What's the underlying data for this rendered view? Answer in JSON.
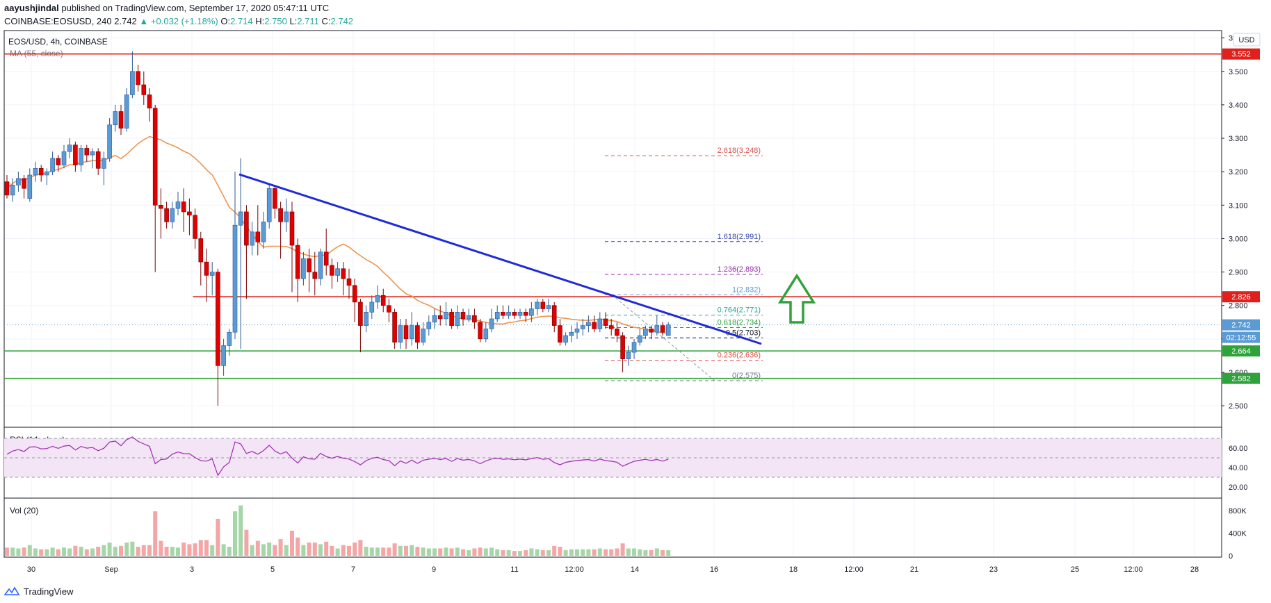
{
  "header": {
    "author": "aayushjindal",
    "published": "published on TradingView.com, September 17, 2020 05:47:11 UTC",
    "symbol": "COINBASE:EOSUSD, 240",
    "last": "2.742",
    "change": "▲ +0.032 (+1.18%)",
    "o_label": "O:",
    "o": "2.714",
    "h_label": "H:",
    "h": "2.750",
    "l_label": "L:",
    "l": "2.711",
    "c_label": "C:",
    "c": "2.742"
  },
  "panes": {
    "main_label": "EOS/USD, 4h, COINBASE",
    "ma_label": "MA (55, close)",
    "rsi_label": "RSI (14, close)",
    "vol_label": "Vol (20)",
    "currency": "USD"
  },
  "colors": {
    "up": "#5b9bd5",
    "down": "#e00000",
    "ma": "#f0944d",
    "trendline": "#1f2ad8",
    "resistance": "#e0201c",
    "support": "#2ea33b",
    "rsi": "#9c27b0",
    "fib": "#d9534f",
    "arrow": "#2ea33b"
  },
  "chart_data": {
    "type": "candlestick",
    "ylim": [
      2.44,
      3.62
    ],
    "y_ticks": [
      "2.500",
      "2.600",
      "2.700",
      "2.800",
      "2.900",
      "3.000",
      "3.100",
      "3.200",
      "3.300",
      "3.400",
      "3.500",
      "3.600"
    ],
    "x_ticks": [
      "30",
      "Sep",
      "3",
      "5",
      "7",
      "9",
      "11",
      "12:00",
      "14",
      "16",
      "18",
      "12:00",
      "21",
      "23",
      "25",
      "12:00",
      "28"
    ],
    "price_tags": [
      {
        "label": "3.552",
        "value": 3.552,
        "color": "#e0201c"
      },
      {
        "label": "2.826",
        "value": 2.826,
        "color": "#e0201c"
      },
      {
        "label": "2.742",
        "value": 2.742,
        "color": "#5b9bd5"
      },
      {
        "label": "02:12:55",
        "value": 2.7,
        "color": "#5b9bd5"
      },
      {
        "label": "2.664",
        "value": 2.664,
        "color": "#2ea33b"
      },
      {
        "label": "2.582",
        "value": 2.582,
        "color": "#2ea33b"
      }
    ],
    "horizontal_lines": [
      {
        "name": "resistance-top",
        "value": 3.552,
        "color": "#e0201c",
        "from": 0.0
      },
      {
        "name": "resistance-mid",
        "value": 2.826,
        "color": "#e0201c",
        "from": 0.155
      },
      {
        "name": "support-upper",
        "value": 2.664,
        "color": "#2ea33b",
        "from": 0.0
      },
      {
        "name": "support-lower",
        "value": 2.582,
        "color": "#2ea33b",
        "from": 0.0
      }
    ],
    "fib_levels": [
      {
        "label": "2.618(3.248)",
        "value": 3.248,
        "color": "#d9534f"
      },
      {
        "label": "1.618(2.991)",
        "value": 2.991,
        "color": "#3949ab"
      },
      {
        "label": "1.236(2.893)",
        "value": 2.893,
        "color": "#9c27b0"
      },
      {
        "label": "1(2.832)",
        "value": 2.832,
        "color": "#5b9bd5"
      },
      {
        "label": "0.764(2.771)",
        "value": 2.771,
        "color": "#26a69a"
      },
      {
        "label": "0.618(2.734)",
        "value": 2.734,
        "color": "#2ea33b"
      },
      {
        "label": "0.5(2.703)",
        "value": 2.703,
        "color": "#131722"
      },
      {
        "label": "0.236(2.636)",
        "value": 2.636,
        "color": "#d9534f"
      },
      {
        "label": "0(2.575)",
        "value": 2.575,
        "color": "#787b86"
      }
    ],
    "candles": [
      [
        3.17,
        3.13,
        3.19,
        3.12
      ],
      [
        3.13,
        3.16,
        3.18,
        3.11
      ],
      [
        3.16,
        3.18,
        3.2,
        3.14
      ],
      [
        3.18,
        3.15,
        3.19,
        3.12
      ],
      [
        3.12,
        3.19,
        3.21,
        3.11
      ],
      [
        3.19,
        3.21,
        3.23,
        3.17
      ],
      [
        3.21,
        3.19,
        3.22,
        3.17
      ],
      [
        3.19,
        3.2,
        3.21,
        3.16
      ],
      [
        3.2,
        3.24,
        3.26,
        3.19
      ],
      [
        3.24,
        3.22,
        3.25,
        3.2
      ],
      [
        3.22,
        3.26,
        3.28,
        3.21
      ],
      [
        3.26,
        3.28,
        3.3,
        3.24
      ],
      [
        3.28,
        3.22,
        3.29,
        3.2
      ],
      [
        3.22,
        3.27,
        3.28,
        3.2
      ],
      [
        3.27,
        3.25,
        3.28,
        3.23
      ],
      [
        3.25,
        3.26,
        3.27,
        3.21
      ],
      [
        3.26,
        3.21,
        3.27,
        3.19
      ],
      [
        3.21,
        3.24,
        3.26,
        3.16
      ],
      [
        3.24,
        3.34,
        3.36,
        3.23
      ],
      [
        3.34,
        3.38,
        3.4,
        3.32
      ],
      [
        3.38,
        3.33,
        3.4,
        3.31
      ],
      [
        3.33,
        3.43,
        3.45,
        3.32
      ],
      [
        3.43,
        3.5,
        3.56,
        3.42
      ],
      [
        3.5,
        3.46,
        3.52,
        3.44
      ],
      [
        3.46,
        3.43,
        3.5,
        3.4
      ],
      [
        3.43,
        3.39,
        3.45,
        3.35
      ],
      [
        3.39,
        3.1,
        3.4,
        2.9
      ],
      [
        3.1,
        3.09,
        3.15,
        3.0
      ],
      [
        3.09,
        3.05,
        3.11,
        3.03
      ],
      [
        3.05,
        3.09,
        3.11,
        3.03
      ],
      [
        3.09,
        3.11,
        3.14,
        3.07
      ],
      [
        3.11,
        3.08,
        3.15,
        3.02
      ],
      [
        3.08,
        3.07,
        3.12,
        3.01
      ],
      [
        3.07,
        3.0,
        3.09,
        2.97
      ],
      [
        3.0,
        2.93,
        3.02,
        2.86
      ],
      [
        2.93,
        2.89,
        2.97,
        2.81
      ],
      [
        2.89,
        2.9,
        2.93,
        2.83
      ],
      [
        2.9,
        2.62,
        2.91,
        2.5
      ],
      [
        2.62,
        2.68,
        2.7,
        2.59
      ],
      [
        2.68,
        2.72,
        2.73,
        2.65
      ],
      [
        2.72,
        3.04,
        3.2,
        2.7
      ],
      [
        3.04,
        3.08,
        3.24,
        2.67
      ],
      [
        3.08,
        2.98,
        3.1,
        2.82
      ],
      [
        2.98,
        3.02,
        3.05,
        2.95
      ],
      [
        3.02,
        2.99,
        3.1,
        2.95
      ],
      [
        2.99,
        3.05,
        3.08,
        2.97
      ],
      [
        3.05,
        3.15,
        3.16,
        3.03
      ],
      [
        3.15,
        3.09,
        3.16,
        3.06
      ],
      [
        3.09,
        3.05,
        3.11,
        2.94
      ],
      [
        3.05,
        3.08,
        3.12,
        3.02
      ],
      [
        3.08,
        2.98,
        3.11,
        2.84
      ],
      [
        2.98,
        2.88,
        3.0,
        2.81
      ],
      [
        2.88,
        2.94,
        2.96,
        2.86
      ],
      [
        2.94,
        2.9,
        2.97,
        2.84
      ],
      [
        2.9,
        2.88,
        2.96,
        2.83
      ],
      [
        2.88,
        2.96,
        2.97,
        2.86
      ],
      [
        2.96,
        2.92,
        3.03,
        2.89
      ],
      [
        2.92,
        2.89,
        2.94,
        2.85
      ],
      [
        2.89,
        2.91,
        2.93,
        2.87
      ],
      [
        2.91,
        2.88,
        2.93,
        2.83
      ],
      [
        2.88,
        2.86,
        2.91,
        2.82
      ],
      [
        2.86,
        2.81,
        2.88,
        2.75
      ],
      [
        2.81,
        2.74,
        2.82,
        2.66
      ],
      [
        2.74,
        2.78,
        2.8,
        2.72
      ],
      [
        2.78,
        2.81,
        2.83,
        2.76
      ],
      [
        2.81,
        2.83,
        2.86,
        2.79
      ],
      [
        2.83,
        2.8,
        2.85,
        2.78
      ],
      [
        2.8,
        2.78,
        2.82,
        2.75
      ],
      [
        2.78,
        2.69,
        2.79,
        2.67
      ],
      [
        2.69,
        2.74,
        2.76,
        2.67
      ],
      [
        2.74,
        2.7,
        2.76,
        2.67
      ],
      [
        2.7,
        2.74,
        2.78,
        2.68
      ],
      [
        2.74,
        2.69,
        2.75,
        2.67
      ],
      [
        2.69,
        2.73,
        2.75,
        2.68
      ],
      [
        2.73,
        2.75,
        2.77,
        2.71
      ],
      [
        2.75,
        2.77,
        2.79,
        2.73
      ],
      [
        2.77,
        2.76,
        2.8,
        2.74
      ],
      [
        2.76,
        2.78,
        2.81,
        2.74
      ],
      [
        2.78,
        2.74,
        2.79,
        2.73
      ],
      [
        2.74,
        2.78,
        2.8,
        2.73
      ],
      [
        2.78,
        2.76,
        2.79,
        2.74
      ],
      [
        2.76,
        2.77,
        2.79,
        2.75
      ],
      [
        2.77,
        2.75,
        2.79,
        2.73
      ],
      [
        2.75,
        2.7,
        2.76,
        2.69
      ],
      [
        2.7,
        2.73,
        2.75,
        2.69
      ],
      [
        2.73,
        2.76,
        2.79,
        2.72
      ],
      [
        2.76,
        2.78,
        2.8,
        2.75
      ],
      [
        2.78,
        2.77,
        2.8,
        2.76
      ],
      [
        2.77,
        2.78,
        2.8,
        2.76
      ],
      [
        2.78,
        2.77,
        2.79,
        2.76
      ],
      [
        2.77,
        2.78,
        2.79,
        2.76
      ],
      [
        2.78,
        2.77,
        2.79,
        2.75
      ],
      [
        2.77,
        2.79,
        2.81,
        2.75
      ],
      [
        2.79,
        2.81,
        2.82,
        2.77
      ],
      [
        2.81,
        2.79,
        2.82,
        2.78
      ],
      [
        2.79,
        2.8,
        2.82,
        2.78
      ],
      [
        2.8,
        2.74,
        2.81,
        2.72
      ],
      [
        2.74,
        2.69,
        2.76,
        2.68
      ],
      [
        2.69,
        2.71,
        2.72,
        2.68
      ],
      [
        2.71,
        2.72,
        2.74,
        2.69
      ],
      [
        2.72,
        2.73,
        2.75,
        2.7
      ],
      [
        2.73,
        2.74,
        2.76,
        2.71
      ],
      [
        2.74,
        2.75,
        2.77,
        2.72
      ],
      [
        2.75,
        2.73,
        2.77,
        2.72
      ],
      [
        2.73,
        2.76,
        2.78,
        2.72
      ],
      [
        2.76,
        2.74,
        2.78,
        2.73
      ],
      [
        2.74,
        2.73,
        2.76,
        2.71
      ],
      [
        2.73,
        2.71,
        2.75,
        2.69
      ],
      [
        2.71,
        2.64,
        2.72,
        2.6
      ],
      [
        2.64,
        2.66,
        2.68,
        2.62
      ],
      [
        2.66,
        2.69,
        2.7,
        2.64
      ],
      [
        2.69,
        2.71,
        2.73,
        2.68
      ],
      [
        2.71,
        2.73,
        2.74,
        2.7
      ],
      [
        2.73,
        2.72,
        2.74,
        2.7
      ],
      [
        2.72,
        2.74,
        2.77,
        2.71
      ],
      [
        2.74,
        2.72,
        2.75,
        2.71
      ],
      [
        2.71,
        2.742,
        2.75,
        2.711
      ]
    ],
    "rsi_ticks": [
      "20.00",
      "40.00",
      "60.00"
    ],
    "rsi_band": [
      30,
      70
    ],
    "vol_ticks": [
      "0",
      "400K",
      "800K"
    ]
  },
  "footer": {
    "brand": "TradingView"
  }
}
